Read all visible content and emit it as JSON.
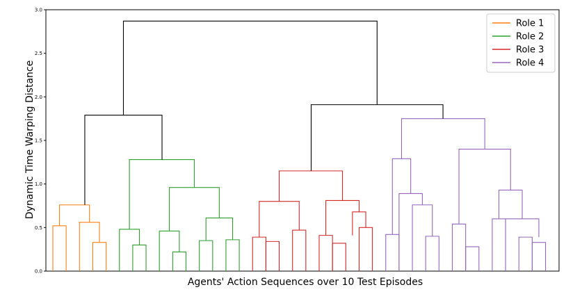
{
  "chart_data": {
    "type": "dendrogram",
    "title": "",
    "xlabel": "Agents' Action Sequences over 10 Test Episodes",
    "ylabel": "Dynamic Time Warping Distance",
    "ylim": [
      0.0,
      3.0
    ],
    "yticks": [
      "0.0",
      "0.5",
      "1.0",
      "1.5",
      "2.0",
      "2.5",
      "3.0"
    ],
    "grid": false,
    "legend_position": "top-right",
    "colors": {
      "root": "#000000",
      "Role 1": "#ff7f0e",
      "Role 2": "#2ca02c",
      "Role 3": "#d62728",
      "Role 4": "#9467bd"
    },
    "legend": [
      "Role 1",
      "Role 2",
      "Role 3",
      "Role 4"
    ],
    "leaf_count": 40,
    "merges": [
      {
        "left": 0,
        "right": 1,
        "height": 0.52,
        "color": "Role 1"
      },
      {
        "left": 3,
        "right": 4,
        "height": 0.33,
        "color": "Role 1"
      },
      {
        "left": 2,
        "right": 0.5,
        "height": 0.56,
        "color": "Role 1"
      },
      {
        "left": 0.5,
        "right": 2.5,
        "height": 0.76,
        "color": "Role 1"
      },
      {
        "left": 5,
        "right": 6,
        "height": 0.3,
        "color": "Role 2"
      },
      {
        "left": 4,
        "right": 5.5,
        "height": 0.48,
        "color": "Role 2"
      },
      {
        "left": 8,
        "right": 9,
        "height": 0.22,
        "color": "Role 2"
      },
      {
        "left": 7,
        "right": 8.5,
        "height": 0.46,
        "color": "Role 2"
      },
      {
        "left": 11,
        "right": 12,
        "height": 0.36,
        "color": "Role 2"
      },
      {
        "left": 10,
        "right": 11.5,
        "height": 0.61,
        "color": "Role 2"
      },
      {
        "left": 7.75,
        "right": 10.75,
        "height": 0.96,
        "color": "Role 2"
      },
      {
        "left": 4.75,
        "right": 9.25,
        "height": 1.28,
        "color": "Role 2"
      },
      {
        "left": 13,
        "right": 14,
        "height": 0.39,
        "color": "Role 3"
      },
      {
        "left": 15,
        "right": 16,
        "height": 0.47,
        "color": "Role 3"
      },
      {
        "left": 13.5,
        "right": 15.5,
        "height": 0.8,
        "color": "Role 3"
      },
      {
        "left": 17,
        "right": 18,
        "height": 0.41,
        "color": "Role 3"
      },
      {
        "left": 19,
        "right": 20,
        "height": 0.5,
        "color": "Role 3"
      },
      {
        "left": 19.5,
        "right": 19.5,
        "height": 0.68,
        "color": "Role 3"
      },
      {
        "left": 17.5,
        "right": 19.5,
        "height": 0.81,
        "color": "Role 3"
      },
      {
        "left": 14.5,
        "right": 18.5,
        "height": 1.15,
        "color": "Role 3"
      },
      {
        "left": 22,
        "right": 23,
        "height": 0.76,
        "color": "Role 4"
      },
      {
        "left": 21,
        "right": 22.5,
        "height": 0.89,
        "color": "Role 4"
      },
      {
        "left": 20,
        "right": 21.75,
        "height": 1.29,
        "color": "Role 4"
      },
      {
        "left": 24,
        "right": 25,
        "height": 0.54,
        "color": "Role 4"
      },
      {
        "left": 26,
        "right": 27,
        "height": 0.6,
        "color": "Role 4"
      },
      {
        "left": 27.5,
        "right": 28.5,
        "height": 0.93,
        "color": "Role 4"
      },
      {
        "left": 24.5,
        "right": 28,
        "height": 1.4,
        "color": "Role 4"
      },
      {
        "left": 20.875,
        "right": 26.25,
        "height": 1.75,
        "color": "Role 4"
      }
    ]
  }
}
